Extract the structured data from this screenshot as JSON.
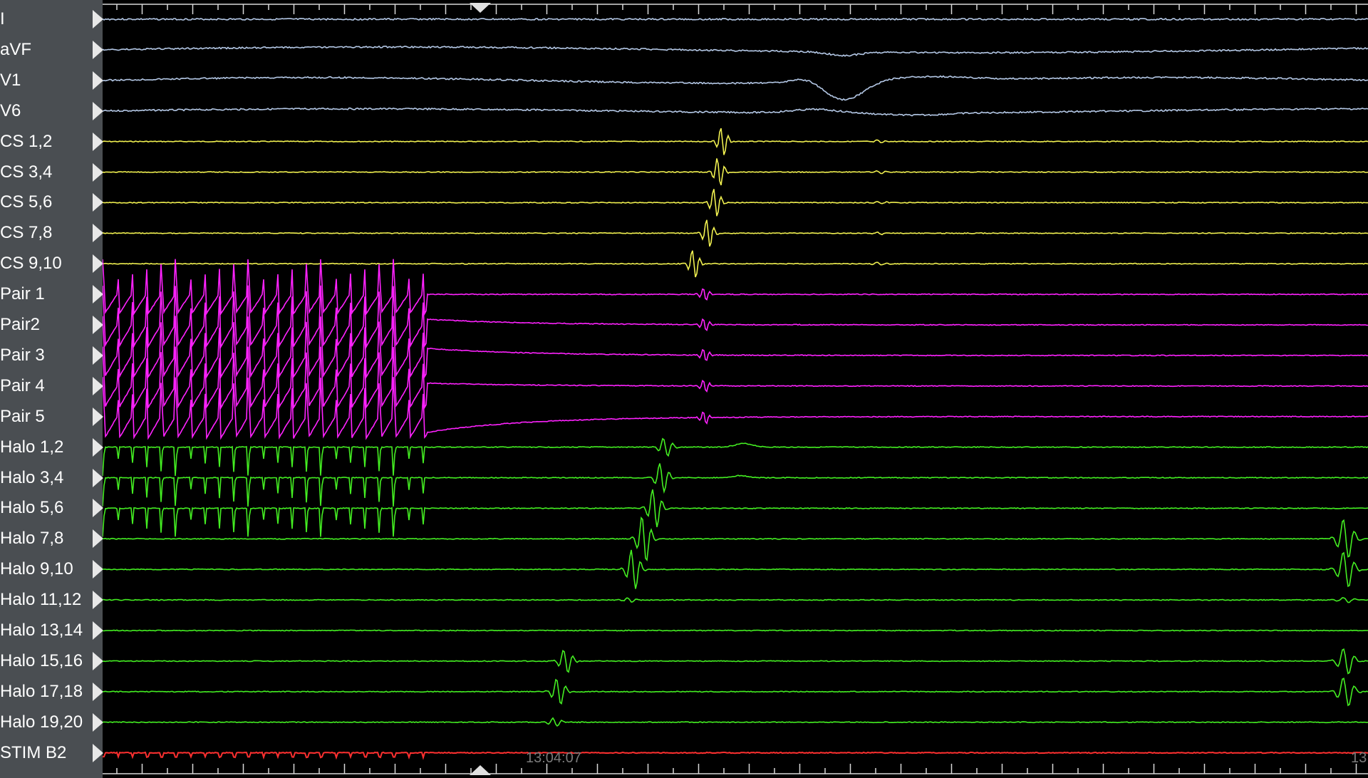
{
  "channels": [
    {
      "label": "I",
      "group": "surface"
    },
    {
      "label": "aVF",
      "group": "surface"
    },
    {
      "label": "V1",
      "group": "surface"
    },
    {
      "label": "V6",
      "group": "surface"
    },
    {
      "label": "CS 1,2",
      "group": "cs"
    },
    {
      "label": "CS 3,4",
      "group": "cs"
    },
    {
      "label": "CS 5,6",
      "group": "cs"
    },
    {
      "label": "CS 7,8",
      "group": "cs"
    },
    {
      "label": "CS 9,10",
      "group": "cs"
    },
    {
      "label": "Pair 1",
      "group": "pair"
    },
    {
      "label": "Pair2",
      "group": "pair"
    },
    {
      "label": "Pair 3",
      "group": "pair"
    },
    {
      "label": "Pair 4",
      "group": "pair"
    },
    {
      "label": "Pair 5",
      "group": "pair"
    },
    {
      "label": "Halo 1,2",
      "group": "halo"
    },
    {
      "label": "Halo 3,4",
      "group": "halo"
    },
    {
      "label": "Halo 5,6",
      "group": "halo"
    },
    {
      "label": "Halo 7,8",
      "group": "halo"
    },
    {
      "label": "Halo 9,10",
      "group": "halo"
    },
    {
      "label": "Halo 11,12",
      "group": "halo"
    },
    {
      "label": "Halo 13,14",
      "group": "halo"
    },
    {
      "label": "Halo 15,16",
      "group": "halo"
    },
    {
      "label": "Halo 17,18",
      "group": "halo"
    },
    {
      "label": "Halo 19,20",
      "group": "halo"
    },
    {
      "label": "STIM B2",
      "group": "stim"
    }
  ],
  "colors": {
    "surface": "#b4c8e6",
    "cs": "#f0f050",
    "pair": "#ff22ff",
    "halo": "#44ee22",
    "stim": "#ff3030",
    "background": "#000000",
    "label_panel": "#4a4e52",
    "tick": "#d8d8d8"
  },
  "timestamps": {
    "left": "13:04:07",
    "right": "13:"
  },
  "icons": {
    "channel_marker": "triangle-right-marker-icon",
    "scroll_handle": "triangle-handle-icon"
  }
}
